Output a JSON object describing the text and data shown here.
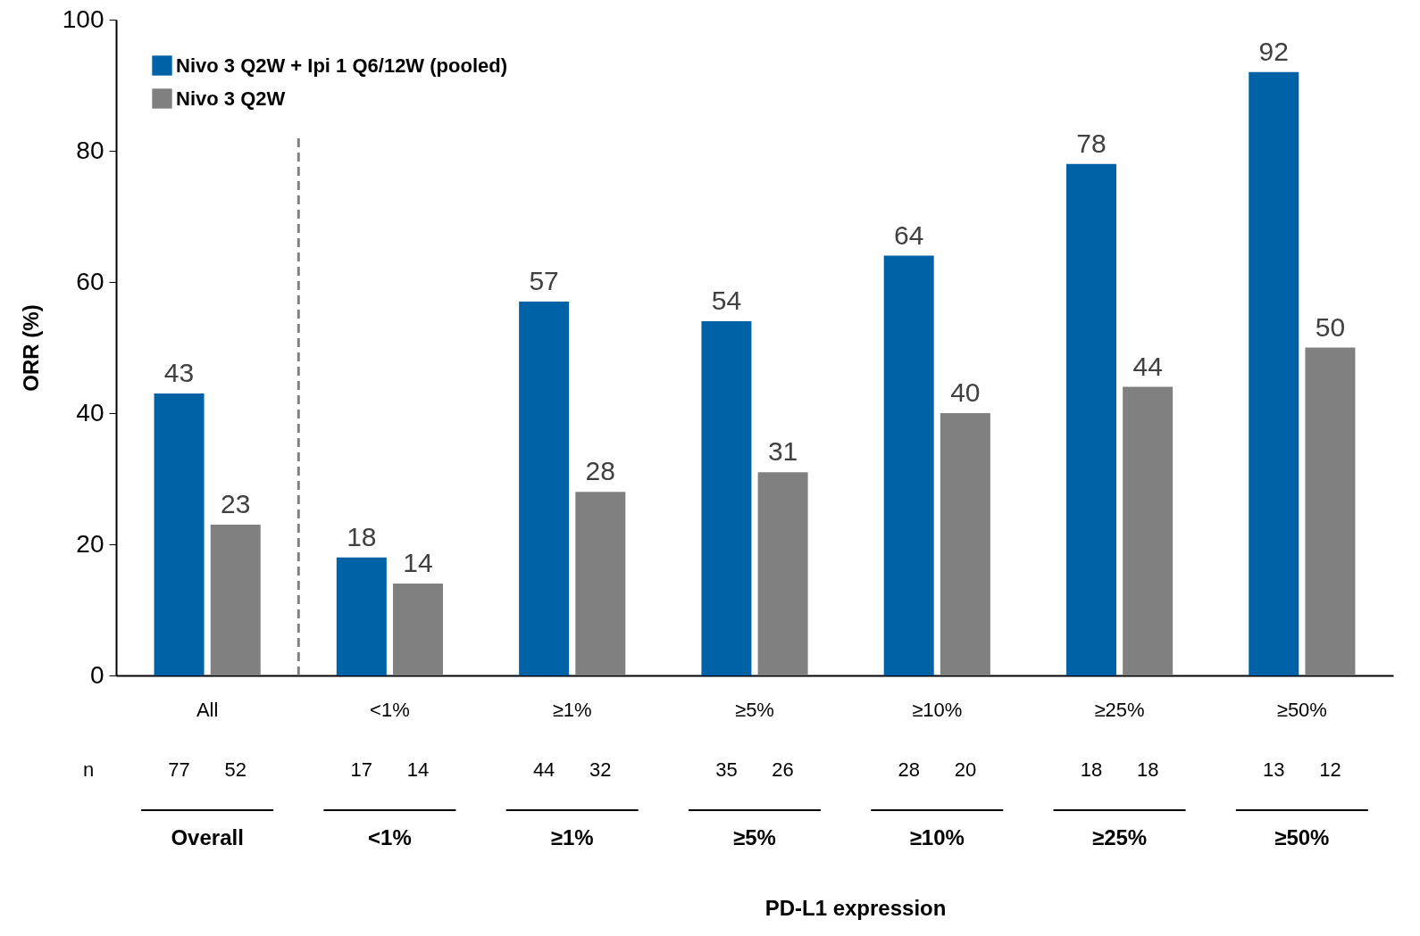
{
  "chart_data": {
    "type": "bar",
    "ylabel": "ORR (%)",
    "categories": [
      "All",
      "<1%",
      "≥1%",
      "≥5%",
      "≥10%",
      "≥25%",
      "≥50%"
    ],
    "series": [
      {
        "name": "Nivo 3 Q2W + Ipi 1 Q6/12W (pooled)",
        "color": "#0062a6",
        "values": [
          43,
          18,
          57,
          54,
          64,
          78,
          92
        ]
      },
      {
        "name": "Nivo 3 Q2W",
        "color": "#808080",
        "values": [
          23,
          14,
          28,
          31,
          40,
          44,
          50
        ]
      }
    ],
    "data_labels": true,
    "ylim": [
      0,
      100
    ],
    "yticks": [
      0,
      20,
      40,
      60,
      80,
      100
    ],
    "grid": false,
    "legend": "top left",
    "annotations": [
      "n",
      "77",
      "52",
      "17",
      "14",
      "44",
      "32",
      "35",
      "26",
      "28",
      "20",
      "18",
      "18",
      "13",
      "12",
      "Overall",
      "<1%",
      "≥1%",
      "≥5%",
      "≥10%",
      "≥25%",
      "≥50%",
      "PD-L1 expression"
    ]
  }
}
